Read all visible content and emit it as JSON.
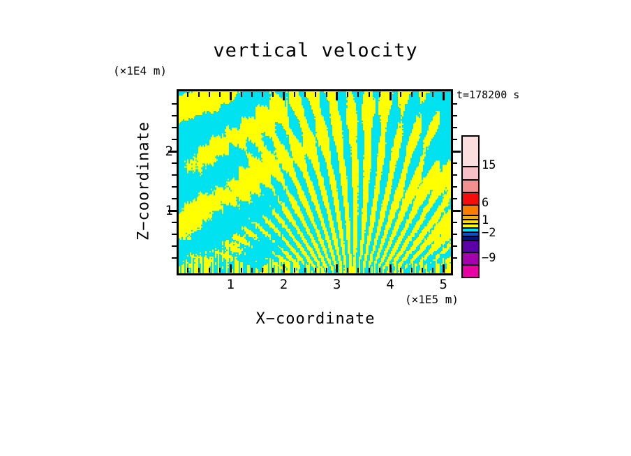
{
  "page": {
    "background_color": "#FFFFFF"
  },
  "chart_data": {
    "type": "heatmap",
    "title": "vertical velocity",
    "annotation": "t=178200 s",
    "xlabel": "X−coordinate",
    "x_units_label": "(×1E5 m)",
    "x_range": [
      0,
      5.12
    ],
    "x_ticks_major": [
      1,
      2,
      3,
      4,
      5
    ],
    "x_minor_step": 0.2,
    "zlabel": "Z−coordinate",
    "z_units_label": "(×1E4 m)",
    "z_range": [
      0,
      3.0
    ],
    "z_ticks_major": [
      1,
      2
    ],
    "z_minor_step": 0.2,
    "field_description": "two-tone filled contour field of vertical velocity: yellow = positive, cyan = negative; fan of fine phase lines radiating from lower center, diagonal wave bands on the flanks, fine vertical striping along the bottom boundary",
    "positive_color": "#FFFF00",
    "negative_color": "#00E2F0",
    "colorbar": {
      "labels": [
        "15",
        "6",
        "1",
        "−2",
        "−9"
      ],
      "label_positions_y": [
        237,
        291,
        316,
        334,
        370
      ],
      "boxes": [
        {
          "color": "#FBDFDF",
          "height": 42
        },
        {
          "color": "#F7BFC6",
          "height": 19
        },
        {
          "color": "#F29090",
          "height": 18
        },
        {
          "color": "#F50D0D",
          "height": 18
        },
        {
          "color": "#FA7D00",
          "height": 15
        },
        {
          "color": "#FFA800",
          "height": 6
        },
        {
          "color": "#FFDC00",
          "height": 6
        },
        {
          "color": "#FFFF00",
          "height": 6
        },
        {
          "color": "#00E1F0",
          "height": 6
        },
        {
          "color": "#0A50D0",
          "height": 6
        },
        {
          "color": "#001487",
          "height": 6
        },
        {
          "color": "#5C00A8",
          "height": 17
        },
        {
          "color": "#A500AD",
          "height": 18
        },
        {
          "color": "#E800A5",
          "height": 18
        }
      ]
    }
  }
}
